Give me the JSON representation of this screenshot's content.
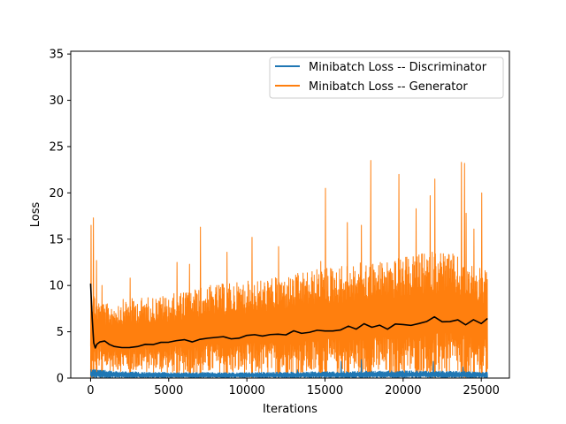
{
  "chart_data": {
    "type": "line",
    "title": "",
    "xlabel": "Iterations",
    "ylabel": "Loss",
    "xlim": [
      -1270,
      26800
    ],
    "ylim": [
      0,
      35.3
    ],
    "xticks": [
      0,
      5000,
      10000,
      15000,
      20000,
      25000
    ],
    "yticks": [
      0,
      5,
      10,
      15,
      20,
      25,
      30,
      35
    ],
    "grid": false,
    "legend_position": "top-right",
    "n_iterations": 25400,
    "series": [
      {
        "name": "Minibatch Loss -- Discriminator",
        "color": "#1f77b4",
        "envelope_x": [
          0,
          500,
          2000,
          5000,
          10000,
          15000,
          20000,
          25400
        ],
        "envelope_min": [
          0.0,
          0.0,
          0.0,
          0.0,
          0.0,
          0.0,
          0.0,
          0.0
        ],
        "envelope_max": [
          1.0,
          0.9,
          0.7,
          0.6,
          0.6,
          0.7,
          0.8,
          0.7
        ],
        "spikes": [
          [
            16000,
            1.8
          ],
          [
            17300,
            2.0
          ],
          [
            21900,
            1.8
          ],
          [
            13200,
            0.9
          ],
          [
            23800,
            1.2
          ]
        ]
      },
      {
        "name": "Minibatch Loss -- Generator",
        "color": "#ff7f0e",
        "envelope_x": [
          0,
          500,
          1000,
          2000,
          5000,
          7500,
          10000,
          12500,
          15000,
          17500,
          20000,
          22500,
          25400
        ],
        "envelope_min": [
          1.5,
          1.0,
          0.8,
          0.7,
          0.5,
          0.4,
          0.3,
          0.3,
          0.2,
          0.2,
          0.2,
          0.2,
          0.3
        ],
        "envelope_max": [
          10.0,
          8.5,
          8.0,
          8.5,
          9.0,
          10.0,
          10.5,
          11.0,
          12.0,
          12.5,
          13.0,
          14.0,
          11.5
        ],
        "spikes": [
          [
            0,
            16.5
          ],
          [
            150,
            17.3
          ],
          [
            350,
            12.7
          ],
          [
            700,
            10.0
          ],
          [
            2500,
            10.8
          ],
          [
            5500,
            12.5
          ],
          [
            6300,
            12.3
          ],
          [
            7000,
            16.3
          ],
          [
            8700,
            13.6
          ],
          [
            10300,
            15.2
          ],
          [
            12000,
            14.2
          ],
          [
            14700,
            12.6
          ],
          [
            15000,
            20.5
          ],
          [
            16400,
            16.8
          ],
          [
            17300,
            16.5
          ],
          [
            17900,
            23.5
          ],
          [
            19700,
            22.0
          ],
          [
            20800,
            18.3
          ],
          [
            21700,
            19.7
          ],
          [
            22000,
            21.5
          ],
          [
            23700,
            23.3
          ],
          [
            23900,
            23.2
          ],
          [
            24000,
            17.8
          ],
          [
            24500,
            16.1
          ],
          [
            25000,
            20.0
          ],
          [
            25300,
            11.4
          ]
        ]
      }
    ],
    "moving_average": {
      "color": "#000000",
      "x": [
        0,
        100,
        200,
        300,
        400,
        600,
        900,
        1200,
        1500,
        2000,
        2500,
        3000,
        3500,
        4000,
        4500,
        5000,
        5500,
        6000,
        6500,
        7000,
        7500,
        8000,
        8500,
        9000,
        9500,
        10000,
        10500,
        11000,
        11500,
        12000,
        12500,
        13000,
        13500,
        14000,
        14500,
        15000,
        15500,
        16000,
        16500,
        17000,
        17500,
        18000,
        18500,
        19000,
        19500,
        20000,
        20500,
        21000,
        21500,
        22000,
        22500,
        23000,
        23500,
        24000,
        24500,
        25000,
        25400
      ],
      "y": [
        10.2,
        6.5,
        3.8,
        3.3,
        3.6,
        3.8,
        3.9,
        3.6,
        3.4,
        3.3,
        3.4,
        3.5,
        3.6,
        3.6,
        3.8,
        3.9,
        4.0,
        4.1,
        4.0,
        4.3,
        4.2,
        4.3,
        4.4,
        4.3,
        4.4,
        4.5,
        4.6,
        4.5,
        4.7,
        4.8,
        4.6,
        5.0,
        4.9,
        5.0,
        5.1,
        5.2,
        5.0,
        5.3,
        5.5,
        5.4,
        5.8,
        5.5,
        5.6,
        5.4,
        5.8,
        5.9,
        5.6,
        6.0,
        6.2,
        6.6,
        6.1,
        6.0,
        6.3,
        5.8,
        6.2,
        6.0,
        6.5
      ]
    }
  }
}
